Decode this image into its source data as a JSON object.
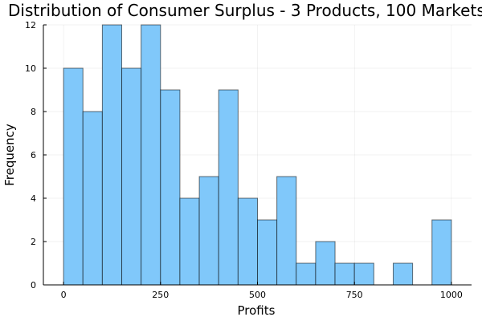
{
  "chart_data": {
    "type": "bar",
    "title": "Distribution of Consumer Surplus - 3 Products, 100 Markets",
    "xlabel": "Profits",
    "ylabel": "Frequency",
    "bin_width": 50,
    "bin_starts": [
      0,
      50,
      100,
      150,
      200,
      250,
      300,
      350,
      400,
      450,
      500,
      550,
      600,
      650,
      700,
      750,
      800,
      850,
      900,
      950
    ],
    "values": [
      10,
      8,
      12,
      10,
      12,
      9,
      4,
      5,
      9,
      4,
      3,
      5,
      1,
      2,
      1,
      1,
      0,
      1,
      0,
      3
    ],
    "xlim": [
      -52,
      1052
    ],
    "ylim": [
      0,
      12
    ],
    "xticks": [
      0,
      250,
      500,
      750,
      1000
    ],
    "xtick_labels": [
      "0",
      "250",
      "500",
      "750",
      "1000"
    ],
    "yticks": [
      0,
      2,
      4,
      6,
      8,
      10,
      12
    ],
    "ytick_labels": [
      "0",
      "2",
      "4",
      "6",
      "8",
      "10",
      "12"
    ],
    "grid": true,
    "legend": "none",
    "bar_color": "#80c8fa"
  }
}
